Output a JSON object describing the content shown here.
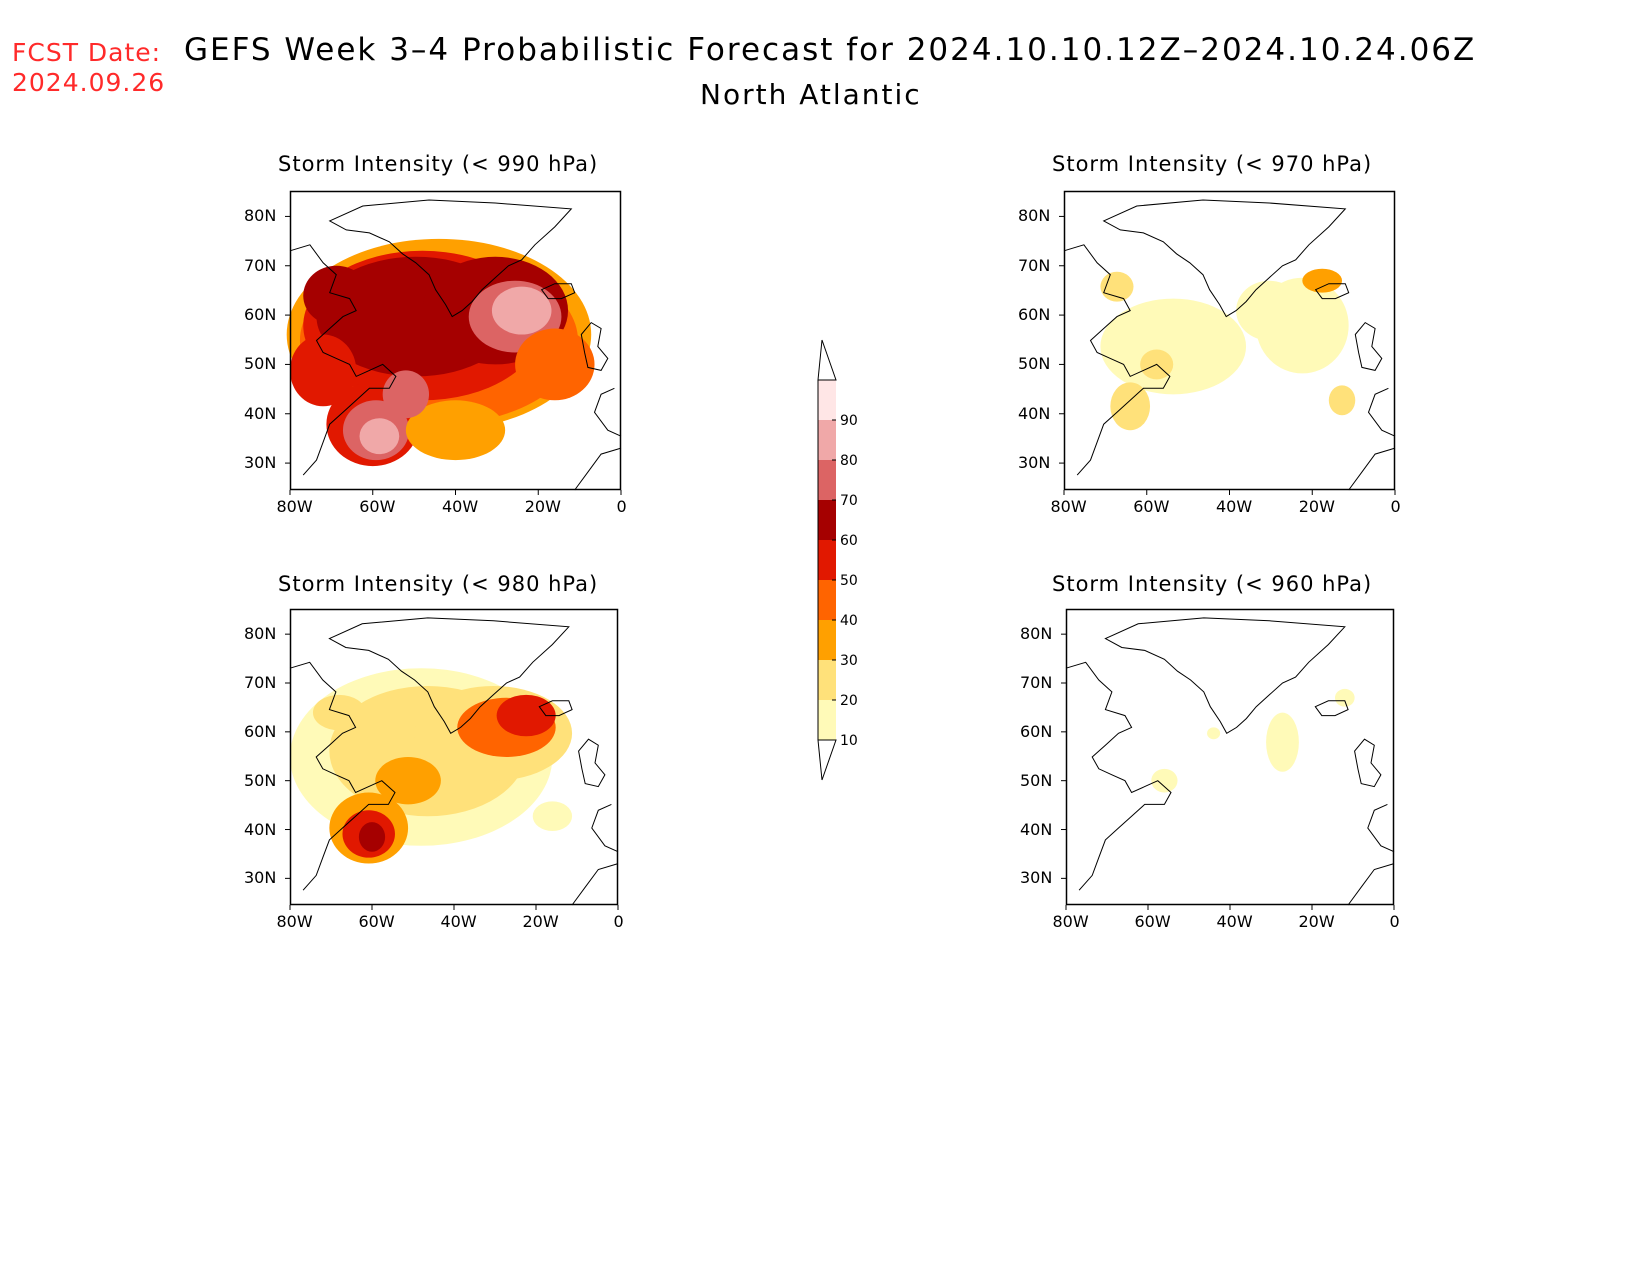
{
  "header": {
    "fcst_label": "FCST Date:",
    "fcst_date": "2024.09.26",
    "title": "GEFS Week 3–4 Probabilistic Forecast for 2024.10.10.12Z–2024.10.24.06Z",
    "subtitle": "North Atlantic"
  },
  "lat_labels": [
    "80N",
    "70N",
    "60N",
    "50N",
    "40N",
    "30N"
  ],
  "lon_labels": [
    "80W",
    "60W",
    "40W",
    "20W",
    "0"
  ],
  "colorbar": {
    "levels": [
      "10",
      "20",
      "30",
      "40",
      "50",
      "60",
      "70",
      "80",
      "90"
    ],
    "colors": [
      "#fffab8",
      "#ffe17a",
      "#ffa000",
      "#ff6400",
      "#e11800",
      "#a50000",
      "#dc6464",
      "#f0a8a8",
      "#ffe6e6"
    ],
    "below_color": "#ffffff"
  },
  "panels": [
    {
      "title": "Storm Intensity (< 990 hPa)",
      "intensity": "high"
    },
    {
      "title": "Storm Intensity (< 970 hPa)",
      "intensity": "low"
    },
    {
      "title": "Storm Intensity (< 980 hPa)",
      "intensity": "medium"
    },
    {
      "title": "Storm Intensity (< 960 hPa)",
      "intensity": "minimal"
    }
  ]
}
